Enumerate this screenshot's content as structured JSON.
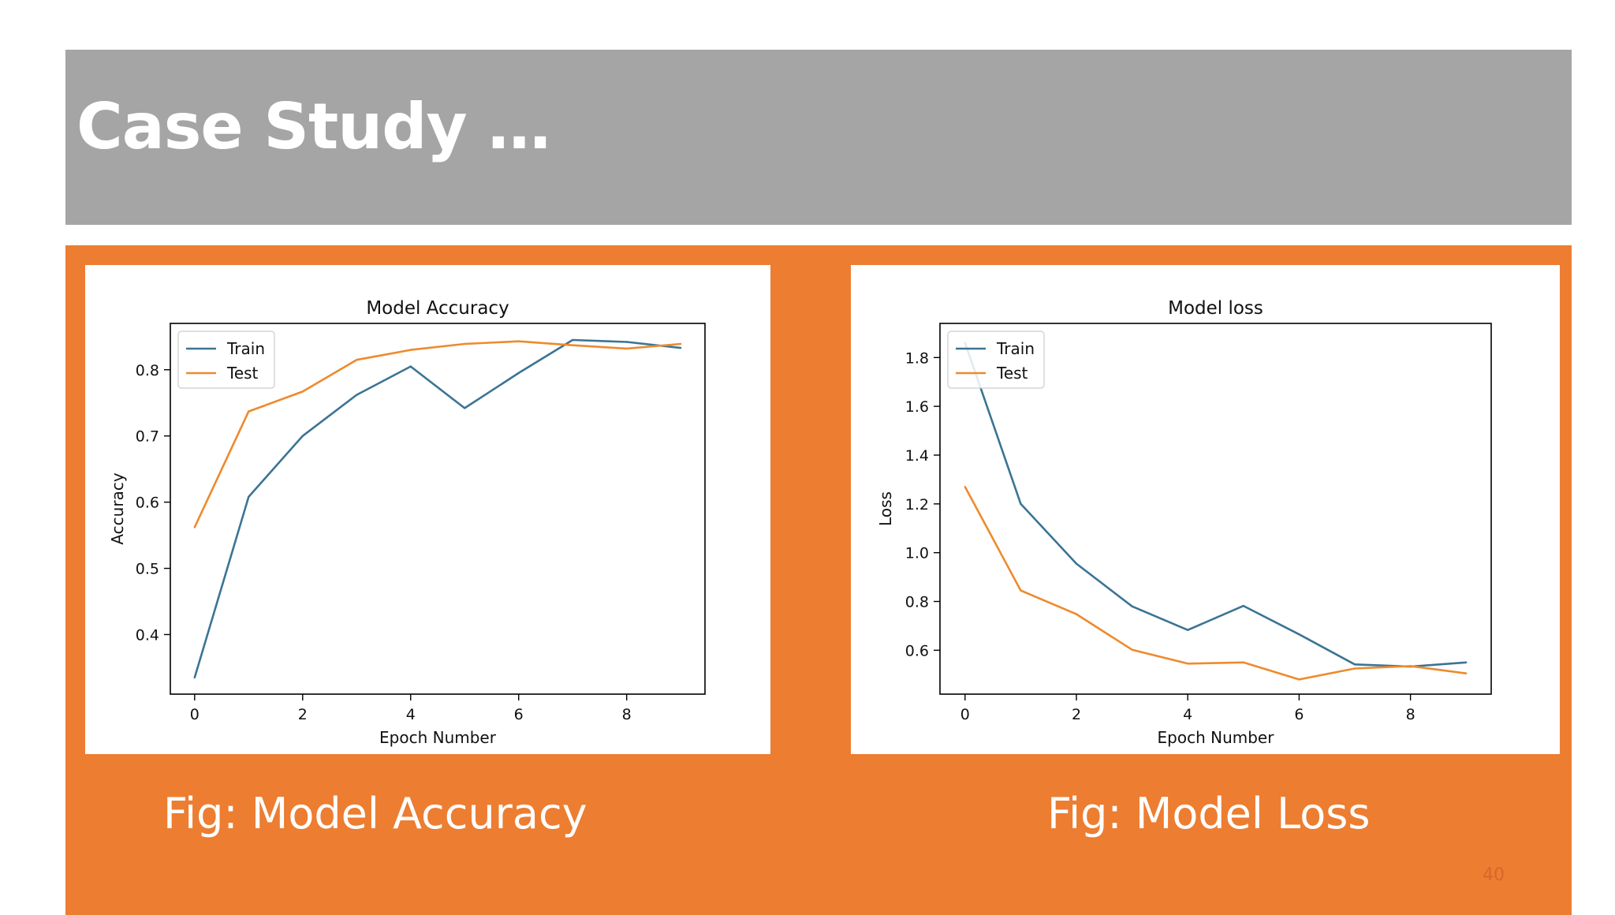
{
  "slide": {
    "title": "Case Study …",
    "page_number": "40",
    "captions": [
      "Fig: Model Accuracy",
      "Fig: Model Loss"
    ],
    "colors": {
      "header_bg": "#a5a5a5",
      "panel_bg": "#ed7d31",
      "caption_text": "#ffffff"
    }
  },
  "chart_data": [
    {
      "type": "line",
      "title": "Model Accuracy",
      "xlabel": "Epoch Number",
      "ylabel": "Accuracy",
      "xlim": [
        -0.45,
        9.45
      ],
      "ylim": [
        0.31,
        0.87
      ],
      "xticks": [
        0,
        2,
        4,
        6,
        8
      ],
      "yticks": [
        0.4,
        0.5,
        0.6,
        0.7,
        0.8
      ],
      "ytick_decimals": 1,
      "legend": "upper left",
      "grid": false,
      "x": [
        0,
        1,
        2,
        3,
        4,
        5,
        6,
        7,
        8,
        9
      ],
      "series": [
        {
          "name": "Train",
          "color": "#3b7494",
          "values": [
            0.335,
            0.608,
            0.7,
            0.762,
            0.805,
            0.742,
            0.795,
            0.845,
            0.842,
            0.833
          ]
        },
        {
          "name": "Test",
          "color": "#ee8a2d",
          "values": [
            0.562,
            0.737,
            0.767,
            0.815,
            0.83,
            0.839,
            0.843,
            0.837,
            0.832,
            0.839
          ]
        }
      ]
    },
    {
      "type": "line",
      "title": "Model loss",
      "xlabel": "Epoch Number",
      "ylabel": "Loss",
      "xlim": [
        -0.45,
        9.45
      ],
      "ylim": [
        0.42,
        1.94
      ],
      "xticks": [
        0,
        2,
        4,
        6,
        8
      ],
      "yticks": [
        0.6,
        0.8,
        1.0,
        1.2,
        1.4,
        1.6,
        1.8
      ],
      "ytick_decimals": 1,
      "legend": "upper left",
      "grid": false,
      "x": [
        0,
        1,
        2,
        3,
        4,
        5,
        6,
        7,
        8,
        9
      ],
      "series": [
        {
          "name": "Train",
          "color": "#3b7494",
          "values": [
            1.86,
            1.2,
            0.955,
            0.78,
            0.683,
            0.782,
            0.665,
            0.542,
            0.533,
            0.55
          ]
        },
        {
          "name": "Test",
          "color": "#ee8a2d",
          "values": [
            1.27,
            0.845,
            0.748,
            0.602,
            0.545,
            0.55,
            0.48,
            0.525,
            0.535,
            0.505
          ]
        }
      ]
    }
  ]
}
